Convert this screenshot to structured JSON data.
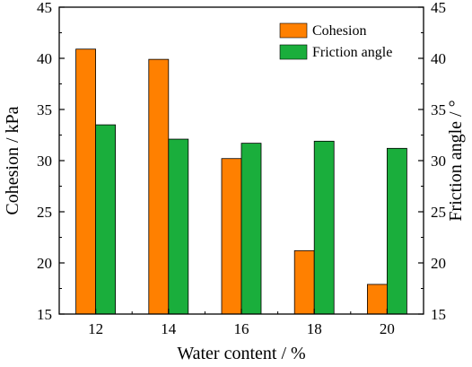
{
  "chart_data": {
    "type": "bar",
    "categories": [
      "12",
      "14",
      "16",
      "18",
      "20"
    ],
    "series": [
      {
        "name": "Cohesion",
        "axis": "left",
        "color": "#ff8000",
        "values": [
          40.9,
          39.9,
          30.2,
          21.2,
          17.9
        ]
      },
      {
        "name": "Friction angle",
        "axis": "right",
        "color": "#1aae3c",
        "values": [
          33.5,
          32.1,
          31.7,
          31.9,
          31.2
        ]
      }
    ],
    "xlabel": "Water content / %",
    "ylabel": "Cohesion / kPa",
    "y2label": "Friction angle / °",
    "ylim": [
      15,
      45
    ],
    "y2lim": [
      15,
      45
    ],
    "yticks": [
      "15",
      "20",
      "25",
      "30",
      "35",
      "40",
      "45"
    ],
    "y2ticks": [
      "15",
      "20",
      "25",
      "30",
      "35",
      "40",
      "45"
    ],
    "legend": "top-right",
    "grid": false
  }
}
